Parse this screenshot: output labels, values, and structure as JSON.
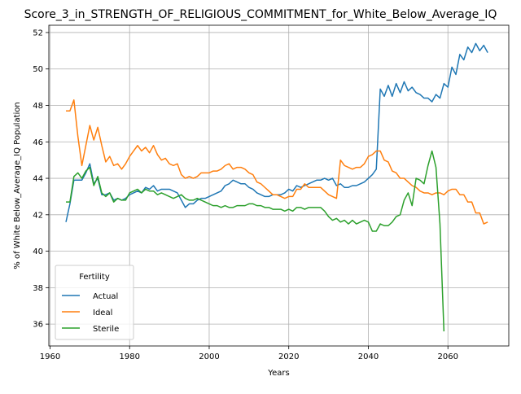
{
  "chart_data": {
    "type": "line",
    "title": "Score_3_in_STRENGTH_OF_RELIGIOUS_COMMITMENT_for_White_Below_Average_IQ",
    "xlabel": "Years",
    "ylabel": "% of White Below_Average_IQ Population",
    "xlim": [
      1959.7,
      2075.3
    ],
    "ylim": [
      34.8,
      52.4
    ],
    "xticks": [
      1960,
      1980,
      2000,
      2020,
      2040,
      2060
    ],
    "yticks": [
      36,
      38,
      40,
      42,
      44,
      46,
      48,
      50,
      52
    ],
    "grid": true,
    "legend": {
      "title": "Fertility",
      "position": "lower-left"
    },
    "series": [
      {
        "name": "Actual",
        "color": "#1f77b4",
        "points": [
          [
            1964,
            41.6
          ],
          [
            1965,
            42.6
          ],
          [
            1966,
            43.9
          ],
          [
            1967,
            43.9
          ],
          [
            1968,
            43.9
          ],
          [
            1969,
            44.3
          ],
          [
            1970,
            44.8
          ],
          [
            1971,
            43.7
          ],
          [
            1972,
            44.0
          ],
          [
            1973,
            43.1
          ],
          [
            1974,
            43.1
          ],
          [
            1975,
            43.2
          ],
          [
            1976,
            42.8
          ],
          [
            1977,
            42.9
          ],
          [
            1978,
            42.8
          ],
          [
            1979,
            42.9
          ],
          [
            1980,
            43.1
          ],
          [
            1981,
            43.2
          ],
          [
            1982,
            43.3
          ],
          [
            1983,
            43.2
          ],
          [
            1984,
            43.5
          ],
          [
            1985,
            43.4
          ],
          [
            1986,
            43.6
          ],
          [
            1987,
            43.3
          ],
          [
            1988,
            43.4
          ],
          [
            1989,
            43.4
          ],
          [
            1990,
            43.4
          ],
          [
            1991,
            43.3
          ],
          [
            1992,
            43.2
          ],
          [
            1993,
            42.8
          ],
          [
            1994,
            42.4
          ],
          [
            1995,
            42.6
          ],
          [
            1996,
            42.6
          ],
          [
            1997,
            42.8
          ],
          [
            1998,
            42.9
          ],
          [
            1999,
            42.9
          ],
          [
            2000,
            43.0
          ],
          [
            2001,
            43.1
          ],
          [
            2002,
            43.2
          ],
          [
            2003,
            43.3
          ],
          [
            2004,
            43.6
          ],
          [
            2005,
            43.7
          ],
          [
            2006,
            43.9
          ],
          [
            2007,
            43.8
          ],
          [
            2008,
            43.7
          ],
          [
            2009,
            43.7
          ],
          [
            2010,
            43.5
          ],
          [
            2011,
            43.4
          ],
          [
            2012,
            43.2
          ],
          [
            2013,
            43.1
          ],
          [
            2014,
            43.0
          ],
          [
            2015,
            43.0
          ],
          [
            2016,
            43.1
          ],
          [
            2017,
            43.1
          ],
          [
            2018,
            43.1
          ],
          [
            2019,
            43.2
          ],
          [
            2020,
            43.4
          ],
          [
            2021,
            43.3
          ],
          [
            2022,
            43.6
          ],
          [
            2023,
            43.5
          ],
          [
            2024,
            43.6
          ],
          [
            2025,
            43.7
          ],
          [
            2026,
            43.8
          ],
          [
            2027,
            43.9
          ],
          [
            2028,
            43.9
          ],
          [
            2029,
            44.0
          ],
          [
            2030,
            43.9
          ],
          [
            2031,
            44.0
          ],
          [
            2032,
            43.6
          ],
          [
            2033,
            43.7
          ],
          [
            2034,
            43.5
          ],
          [
            2035,
            43.5
          ],
          [
            2036,
            43.6
          ],
          [
            2037,
            43.6
          ],
          [
            2038,
            43.7
          ],
          [
            2039,
            43.8
          ],
          [
            2040,
            44.0
          ],
          [
            2041,
            44.2
          ],
          [
            2042,
            44.5
          ],
          [
            2043,
            48.9
          ],
          [
            2044,
            48.5
          ],
          [
            2045,
            49.1
          ],
          [
            2046,
            48.5
          ],
          [
            2047,
            49.2
          ],
          [
            2048,
            48.7
          ],
          [
            2049,
            49.3
          ],
          [
            2050,
            48.8
          ],
          [
            2051,
            49.0
          ],
          [
            2052,
            48.7
          ],
          [
            2053,
            48.6
          ],
          [
            2054,
            48.4
          ],
          [
            2055,
            48.4
          ],
          [
            2056,
            48.2
          ],
          [
            2057,
            48.6
          ],
          [
            2058,
            48.4
          ],
          [
            2059,
            49.2
          ],
          [
            2060,
            49.0
          ],
          [
            2061,
            50.1
          ],
          [
            2062,
            49.7
          ],
          [
            2063,
            50.8
          ],
          [
            2064,
            50.5
          ],
          [
            2065,
            51.2
          ],
          [
            2066,
            50.9
          ],
          [
            2067,
            51.4
          ],
          [
            2068,
            51.0
          ],
          [
            2069,
            51.3
          ],
          [
            2070,
            50.9
          ]
        ]
      },
      {
        "name": "Ideal",
        "color": "#ff7f0e",
        "points": [
          [
            1964,
            47.7
          ],
          [
            1965,
            47.7
          ],
          [
            1966,
            48.3
          ],
          [
            1967,
            46.3
          ],
          [
            1968,
            44.7
          ],
          [
            1969,
            45.8
          ],
          [
            1970,
            46.9
          ],
          [
            1971,
            46.1
          ],
          [
            1972,
            46.8
          ],
          [
            1973,
            45.8
          ],
          [
            1974,
            44.9
          ],
          [
            1975,
            45.2
          ],
          [
            1976,
            44.7
          ],
          [
            1977,
            44.8
          ],
          [
            1978,
            44.5
          ],
          [
            1979,
            44.8
          ],
          [
            1980,
            45.2
          ],
          [
            1981,
            45.5
          ],
          [
            1982,
            45.8
          ],
          [
            1983,
            45.5
          ],
          [
            1984,
            45.7
          ],
          [
            1985,
            45.4
          ],
          [
            1986,
            45.8
          ],
          [
            1987,
            45.3
          ],
          [
            1988,
            45.0
          ],
          [
            1989,
            45.1
          ],
          [
            1990,
            44.8
          ],
          [
            1991,
            44.7
          ],
          [
            1992,
            44.8
          ],
          [
            1993,
            44.2
          ],
          [
            1994,
            44.0
          ],
          [
            1995,
            44.1
          ],
          [
            1996,
            44.0
          ],
          [
            1997,
            44.1
          ],
          [
            1998,
            44.3
          ],
          [
            1999,
            44.3
          ],
          [
            2000,
            44.3
          ],
          [
            2001,
            44.4
          ],
          [
            2002,
            44.4
          ],
          [
            2003,
            44.5
          ],
          [
            2004,
            44.7
          ],
          [
            2005,
            44.8
          ],
          [
            2006,
            44.5
          ],
          [
            2007,
            44.6
          ],
          [
            2008,
            44.6
          ],
          [
            2009,
            44.5
          ],
          [
            2010,
            44.3
          ],
          [
            2011,
            44.2
          ],
          [
            2012,
            43.8
          ],
          [
            2013,
            43.7
          ],
          [
            2014,
            43.5
          ],
          [
            2015,
            43.3
          ],
          [
            2016,
            43.1
          ],
          [
            2017,
            43.1
          ],
          [
            2018,
            43.0
          ],
          [
            2019,
            42.9
          ],
          [
            2020,
            43.0
          ],
          [
            2021,
            43.0
          ],
          [
            2022,
            43.4
          ],
          [
            2023,
            43.4
          ],
          [
            2024,
            43.7
          ],
          [
            2025,
            43.5
          ],
          [
            2026,
            43.5
          ],
          [
            2027,
            43.5
          ],
          [
            2028,
            43.5
          ],
          [
            2029,
            43.3
          ],
          [
            2030,
            43.1
          ],
          [
            2031,
            43.0
          ],
          [
            2032,
            42.9
          ],
          [
            2033,
            45.0
          ],
          [
            2034,
            44.7
          ],
          [
            2035,
            44.6
          ],
          [
            2036,
            44.5
          ],
          [
            2037,
            44.6
          ],
          [
            2038,
            44.6
          ],
          [
            2039,
            44.8
          ],
          [
            2040,
            45.2
          ],
          [
            2041,
            45.3
          ],
          [
            2042,
            45.5
          ],
          [
            2043,
            45.5
          ],
          [
            2044,
            45.0
          ],
          [
            2045,
            44.9
          ],
          [
            2046,
            44.4
          ],
          [
            2047,
            44.3
          ],
          [
            2048,
            44.0
          ],
          [
            2049,
            44.0
          ],
          [
            2050,
            43.8
          ],
          [
            2051,
            43.6
          ],
          [
            2052,
            43.5
          ],
          [
            2053,
            43.3
          ],
          [
            2054,
            43.2
          ],
          [
            2055,
            43.2
          ],
          [
            2056,
            43.1
          ],
          [
            2057,
            43.2
          ],
          [
            2058,
            43.2
          ],
          [
            2059,
            43.1
          ],
          [
            2060,
            43.3
          ],
          [
            2061,
            43.4
          ],
          [
            2062,
            43.4
          ],
          [
            2063,
            43.1
          ],
          [
            2064,
            43.1
          ],
          [
            2065,
            42.7
          ],
          [
            2066,
            42.7
          ],
          [
            2067,
            42.1
          ],
          [
            2068,
            42.1
          ],
          [
            2069,
            41.5
          ],
          [
            2070,
            41.6
          ]
        ]
      },
      {
        "name": "Sterile",
        "color": "#2ca02c",
        "points": [
          [
            1964,
            42.7
          ],
          [
            1965,
            42.7
          ],
          [
            1966,
            44.1
          ],
          [
            1967,
            44.3
          ],
          [
            1968,
            44.0
          ],
          [
            1969,
            44.4
          ],
          [
            1970,
            44.6
          ],
          [
            1971,
            43.6
          ],
          [
            1972,
            44.1
          ],
          [
            1973,
            43.2
          ],
          [
            1974,
            43.0
          ],
          [
            1975,
            43.2
          ],
          [
            1976,
            42.7
          ],
          [
            1977,
            42.9
          ],
          [
            1978,
            42.8
          ],
          [
            1979,
            42.8
          ],
          [
            1980,
            43.2
          ],
          [
            1981,
            43.3
          ],
          [
            1982,
            43.4
          ],
          [
            1983,
            43.2
          ],
          [
            1984,
            43.4
          ],
          [
            1985,
            43.3
          ],
          [
            1986,
            43.3
          ],
          [
            1987,
            43.1
          ],
          [
            1988,
            43.2
          ],
          [
            1989,
            43.1
          ],
          [
            1990,
            43.0
          ],
          [
            1991,
            42.9
          ],
          [
            1992,
            43.0
          ],
          [
            1993,
            43.1
          ],
          [
            1994,
            42.9
          ],
          [
            1995,
            42.8
          ],
          [
            1996,
            42.8
          ],
          [
            1997,
            42.9
          ],
          [
            1998,
            42.8
          ],
          [
            1999,
            42.7
          ],
          [
            2000,
            42.6
          ],
          [
            2001,
            42.5
          ],
          [
            2002,
            42.5
          ],
          [
            2003,
            42.4
          ],
          [
            2004,
            42.5
          ],
          [
            2005,
            42.4
          ],
          [
            2006,
            42.4
          ],
          [
            2007,
            42.5
          ],
          [
            2008,
            42.5
          ],
          [
            2009,
            42.5
          ],
          [
            2010,
            42.6
          ],
          [
            2011,
            42.6
          ],
          [
            2012,
            42.5
          ],
          [
            2013,
            42.5
          ],
          [
            2014,
            42.4
          ],
          [
            2015,
            42.4
          ],
          [
            2016,
            42.3
          ],
          [
            2017,
            42.3
          ],
          [
            2018,
            42.3
          ],
          [
            2019,
            42.2
          ],
          [
            2020,
            42.3
          ],
          [
            2021,
            42.2
          ],
          [
            2022,
            42.4
          ],
          [
            2023,
            42.4
          ],
          [
            2024,
            42.3
          ],
          [
            2025,
            42.4
          ],
          [
            2026,
            42.4
          ],
          [
            2027,
            42.4
          ],
          [
            2028,
            42.4
          ],
          [
            2029,
            42.2
          ],
          [
            2030,
            41.9
          ],
          [
            2031,
            41.7
          ],
          [
            2032,
            41.8
          ],
          [
            2033,
            41.6
          ],
          [
            2034,
            41.7
          ],
          [
            2035,
            41.5
          ],
          [
            2036,
            41.7
          ],
          [
            2037,
            41.5
          ],
          [
            2038,
            41.6
          ],
          [
            2039,
            41.7
          ],
          [
            2040,
            41.6
          ],
          [
            2041,
            41.1
          ],
          [
            2042,
            41.1
          ],
          [
            2043,
            41.5
          ],
          [
            2044,
            41.4
          ],
          [
            2045,
            41.4
          ],
          [
            2046,
            41.6
          ],
          [
            2047,
            41.9
          ],
          [
            2048,
            42.0
          ],
          [
            2049,
            42.8
          ],
          [
            2050,
            43.2
          ],
          [
            2051,
            42.5
          ],
          [
            2052,
            44.0
          ],
          [
            2053,
            43.9
          ],
          [
            2054,
            43.7
          ],
          [
            2055,
            44.7
          ],
          [
            2056,
            45.5
          ],
          [
            2057,
            44.6
          ],
          [
            2058,
            41.5
          ],
          [
            2059,
            35.6
          ]
        ]
      }
    ]
  }
}
